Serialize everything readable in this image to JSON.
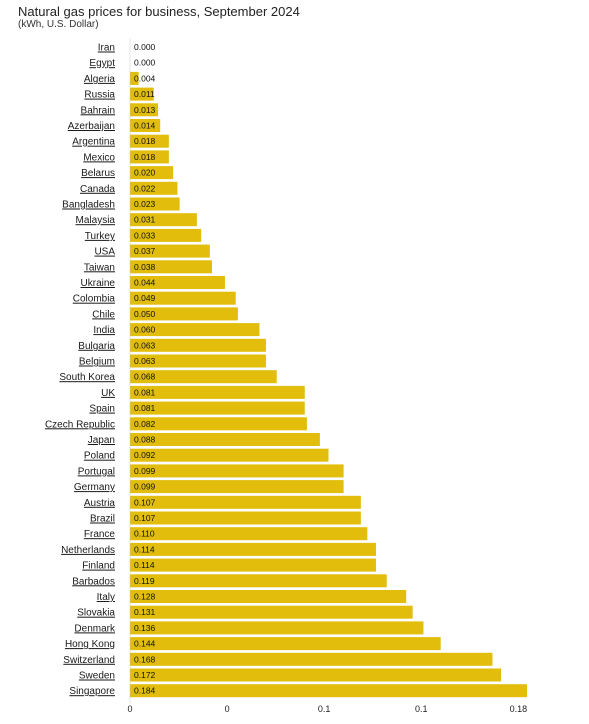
{
  "chart_data": {
    "type": "bar",
    "orientation": "horizontal",
    "title": "Natural gas prices for business, September 2024",
    "subtitle": "(kWh, U.S. Dollar)",
    "categories": [
      "Iran",
      "Egypt",
      "Algeria",
      "Russia",
      "Bahrain",
      "Azerbaijan",
      "Argentina",
      "Mexico",
      "Belarus",
      "Canada",
      "Bangladesh",
      "Malaysia",
      "Turkey",
      "USA",
      "Taiwan",
      "Ukraine",
      "Colombia",
      "Chile",
      "India",
      "Bulgaria",
      "Belgium",
      "South Korea",
      "UK",
      "Spain",
      "Czech Republic",
      "Japan",
      "Poland",
      "Portugal",
      "Germany",
      "Austria",
      "Brazil",
      "France",
      "Netherlands",
      "Finland",
      "Barbados",
      "Italy",
      "Slovakia",
      "Denmark",
      "Hong Kong",
      "Switzerland",
      "Sweden",
      "Singapore"
    ],
    "values": [
      0.0,
      0.0,
      0.004,
      0.011,
      0.013,
      0.014,
      0.018,
      0.018,
      0.02,
      0.022,
      0.023,
      0.031,
      0.033,
      0.037,
      0.038,
      0.044,
      0.049,
      0.05,
      0.06,
      0.063,
      0.063,
      0.068,
      0.081,
      0.081,
      0.082,
      0.088,
      0.092,
      0.099,
      0.099,
      0.107,
      0.107,
      0.11,
      0.114,
      0.114,
      0.119,
      0.128,
      0.131,
      0.136,
      0.144,
      0.168,
      0.172,
      0.184
    ],
    "value_labels": [
      "0.000",
      "0.000",
      "0.004",
      "0.011",
      "0.013",
      "0.014",
      "0.018",
      "0.018",
      "0.020",
      "0.022",
      "0.023",
      "0.031",
      "0.033",
      "0.037",
      "0.038",
      "0.044",
      "0.049",
      "0.050",
      "0.060",
      "0.063",
      "0.063",
      "0.068",
      "0.081",
      "0.081",
      "0.082",
      "0.088",
      "0.092",
      "0.099",
      "0.099",
      "0.107",
      "0.107",
      "0.110",
      "0.114",
      "0.114",
      "0.119",
      "0.128",
      "0.131",
      "0.136",
      "0.144",
      "0.168",
      "0.172",
      "0.184"
    ],
    "xlim": [
      0,
      0.184
    ],
    "x_ticks": [
      0,
      0.045,
      0.09,
      0.135,
      0.18
    ],
    "x_tick_labels": [
      "0",
      "0",
      "0.1",
      "0.1",
      "0.18"
    ],
    "grid": false,
    "bar_color": "#e2bd0b",
    "label_color": "#1a1a1a"
  }
}
